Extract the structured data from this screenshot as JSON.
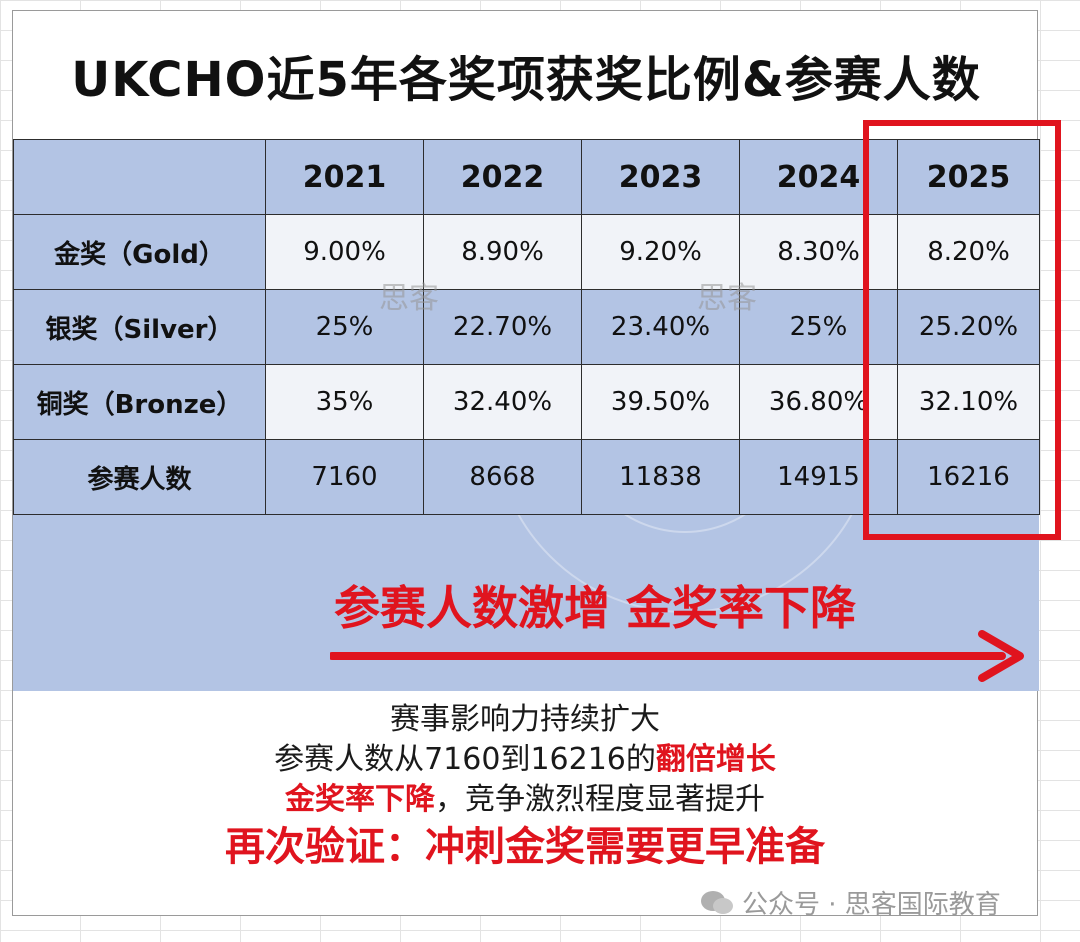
{
  "title": "UKCHO近5年各奖项获奖比例&参赛人数",
  "table": {
    "years": [
      "2021",
      "2022",
      "2023",
      "2024",
      "2025"
    ],
    "rows": [
      {
        "label": "金奖（Gold）",
        "values": [
          "9.00%",
          "8.90%",
          "9.20%",
          "8.30%",
          "8.20%"
        ]
      },
      {
        "label": "银奖（Silver）",
        "values": [
          "25%",
          "22.70%",
          "23.40%",
          "25%",
          "25.20%"
        ]
      },
      {
        "label": "铜奖（Bronze）",
        "values": [
          "35%",
          "32.40%",
          "39.50%",
          "36.80%",
          "32.10%"
        ]
      },
      {
        "label": "参赛人数",
        "values": [
          "7160",
          "8668",
          "11838",
          "14915",
          "16216"
        ]
      }
    ]
  },
  "watermark": "思客",
  "headline": "参赛人数激增  金奖率下降",
  "bottom": {
    "line1": "赛事影响力持续扩大",
    "line2_prefix": "参赛人数从7160到16216的",
    "line2_highlight": "翻倍增长",
    "line3_highlight": "金奖率下降",
    "line3_suffix": "，竞争激烈程度显著提升",
    "line4": "再次验证：冲刺金奖需要更早准备"
  },
  "footer": "公众号 · 思客国际教育",
  "colors": {
    "accent_red": "#e0141e",
    "table_blue": "#b3c4e4"
  }
}
